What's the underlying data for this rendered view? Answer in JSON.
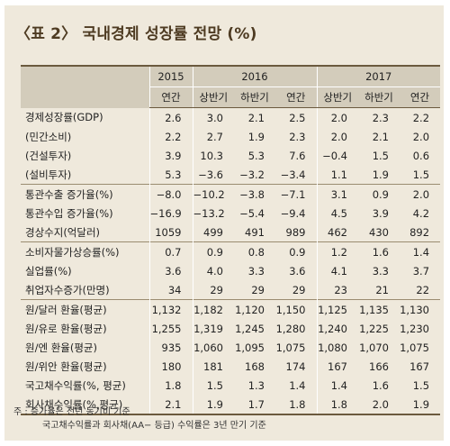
{
  "title": "〈표 2〉 국내경제 성장률 전망 (%)",
  "header": {
    "years": [
      "2015",
      "2016",
      "2017"
    ],
    "periods": [
      "연간",
      "상반기",
      "하반기",
      "연간",
      "상반기",
      "하반기",
      "연간"
    ]
  },
  "groups": [
    {
      "rows": [
        {
          "label": "경제성장률(GDP)",
          "values": [
            "2.6",
            "3.0",
            "2.1",
            "2.5",
            "2.0",
            "2.3",
            "2.2"
          ]
        },
        {
          "label": "(민간소비)",
          "values": [
            "2.2",
            "2.7",
            "1.9",
            "2.3",
            "2.0",
            "2.1",
            "2.0"
          ]
        },
        {
          "label": "(건설투자)",
          "values": [
            "3.9",
            "10.3",
            "5.3",
            "7.6",
            "−0.4",
            "1.5",
            "0.6"
          ]
        },
        {
          "label": "(설비투자)",
          "values": [
            "5.3",
            "−3.6",
            "−3.2",
            "−3.4",
            "1.1",
            "1.9",
            "1.5"
          ]
        }
      ]
    },
    {
      "rows": [
        {
          "label": "통관수출 증가율(%)",
          "values": [
            "−8.0",
            "−10.2",
            "−3.8",
            "−7.1",
            "3.1",
            "0.9",
            "2.0"
          ]
        },
        {
          "label": "통관수입 증가율(%)",
          "values": [
            "−16.9",
            "−13.2",
            "−5.4",
            "−9.4",
            "4.5",
            "3.9",
            "4.2"
          ]
        },
        {
          "label": "경상수지(억달러)",
          "values": [
            "1059",
            "499",
            "491",
            "989",
            "462",
            "430",
            "892"
          ]
        }
      ]
    },
    {
      "rows": [
        {
          "label": "소비자물가상승률(%)",
          "values": [
            "0.7",
            "0.9",
            "0.8",
            "0.9",
            "1.2",
            "1.6",
            "1.4"
          ]
        },
        {
          "label": "실업률(%)",
          "values": [
            "3.6",
            "4.0",
            "3.3",
            "3.6",
            "4.1",
            "3.3",
            "3.7"
          ]
        },
        {
          "label": "취업자수증가(만명)",
          "values": [
            "34",
            "29",
            "29",
            "29",
            "23",
            "21",
            "22"
          ]
        }
      ]
    },
    {
      "rows": [
        {
          "label": "원/달러 환율(평균)",
          "values": [
            "1,132",
            "1,182",
            "1,120",
            "1,150",
            "1,125",
            "1,135",
            "1,130"
          ]
        },
        {
          "label": "원/유로 환율(평균)",
          "values": [
            "1,255",
            "1,319",
            "1,245",
            "1,280",
            "1,240",
            "1,225",
            "1,230"
          ]
        },
        {
          "label": "원/엔 환율(평균)",
          "values": [
            "935",
            "1,060",
            "1,095",
            "1,075",
            "1,080",
            "1,070",
            "1,075"
          ]
        },
        {
          "label": "원/위안 환율(평균)",
          "values": [
            "180",
            "181",
            "168",
            "174",
            "167",
            "166",
            "167"
          ]
        },
        {
          "label": "국고채수익률(%, 평균)",
          "values": [
            "1.8",
            "1.5",
            "1.3",
            "1.4",
            "1.4",
            "1.6",
            "1.5"
          ]
        },
        {
          "label": "회사채수익률(%,평균)",
          "values": [
            "2.1",
            "1.9",
            "1.7",
            "1.8",
            "1.8",
            "2.0",
            "1.9"
          ]
        }
      ]
    }
  ],
  "notes": [
    "주 : 증가율은 전년 동기비 기준",
    "국고채수익률과 회사채(AA− 등급) 수익률은 3년 만기 기준"
  ]
}
